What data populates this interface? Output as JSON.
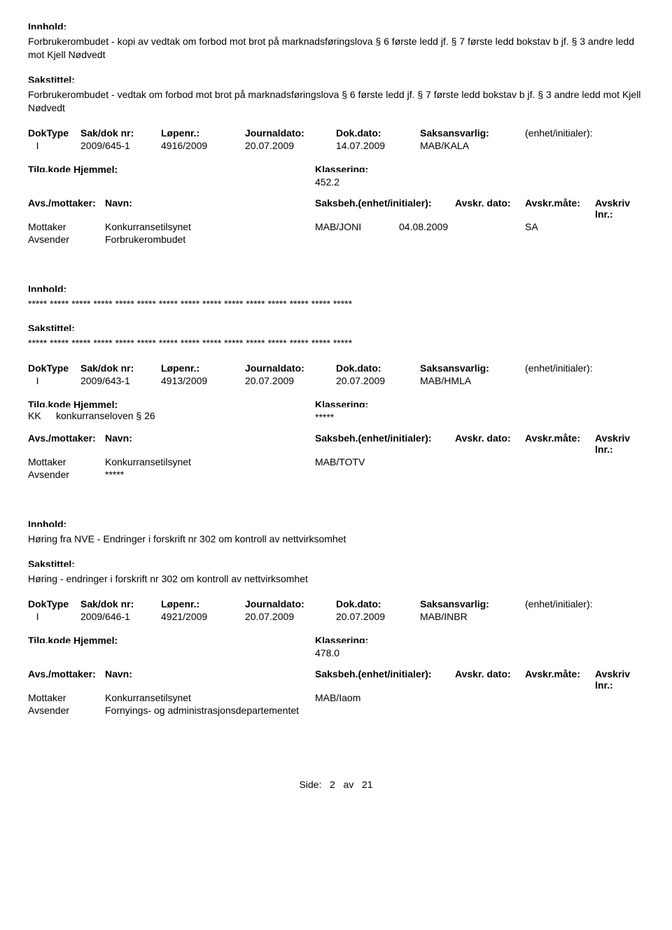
{
  "labels": {
    "innhold": "Innhold:",
    "sakstittel": "Sakstittel:",
    "dokType": "DokType",
    "sakDok": "Sak/dok nr:",
    "lopenr": "Løpenr.:",
    "journaldato": "Journaldato:",
    "dokdato": "Dok.dato:",
    "saksansvarlig": "Saksansvarlig:",
    "enhet": "(enhet/initialer):",
    "tilgkode": "Tilg.kode",
    "hjemmel": "Hjemmel:",
    "klassering": "Klassering:",
    "avsMottaker": "Avs./mottaker:",
    "navn": "Navn:",
    "saksbeh": "Saksbeh.(enhet/initialer):",
    "avskrDato": "Avskr. dato:",
    "avskrMate": "Avskr.måte:",
    "avskrivLnr": "Avskriv lnr.:"
  },
  "records": [
    {
      "innhold": "Forbrukerombudet - kopi av vedtak om forbod mot brot på marknadsføringslova § 6 første ledd jf. § 7 første ledd bokstav b jf. § 3 andre ledd mot Kjell Nødvedt",
      "sakstittel": "Forbrukerombudet - vedtak om forbod mot brot på marknadsføringslova § 6 første ledd jf. § 7 første ledd bokstav b jf. § 3 andre ledd mot Kjell Nødvedt",
      "dokType": "I",
      "sakDok": "2009/645-1",
      "lopenr": "4916/2009",
      "journaldato": "20.07.2009",
      "dokdato": "14.07.2009",
      "saksansvarlig": "MAB/KALA",
      "enhet": "",
      "tilgkode": "",
      "hjemmel": "",
      "klassering": "452.2",
      "parties": [
        {
          "role": "Mottaker",
          "name": "Konkurransetilsynet",
          "saksbeh": "MAB/JONI",
          "avskrDato": "04.08.2009",
          "avskrMate": "SA"
        },
        {
          "role": "Avsender",
          "name": "Forbrukerombudet",
          "saksbeh": "",
          "avskrDato": "",
          "avskrMate": ""
        }
      ]
    },
    {
      "innhold": "***** ***** ***** ***** ***** ***** ***** ***** ***** ***** ***** ***** ***** ***** *****",
      "sakstittel": "***** ***** ***** ***** ***** ***** ***** ***** ***** ***** ***** ***** ***** ***** *****",
      "dokType": "I",
      "sakDok": "2009/643-1",
      "lopenr": "4913/2009",
      "journaldato": "20.07.2009",
      "dokdato": "20.07.2009",
      "saksansvarlig": "MAB/HMLA",
      "enhet": "",
      "tilgkode": "KK",
      "hjemmel": "konkurranseloven § 26",
      "klassering": "*****",
      "parties": [
        {
          "role": "Mottaker",
          "name": "Konkurransetilsynet",
          "saksbeh": "MAB/TOTV",
          "avskrDato": "",
          "avskrMate": ""
        },
        {
          "role": "Avsender",
          "name": "*****",
          "saksbeh": "",
          "avskrDato": "",
          "avskrMate": ""
        }
      ]
    },
    {
      "innhold": "Høring fra NVE - Endringer i forskrift nr 302 om kontroll av nettvirksomhet",
      "sakstittel": "Høring - endringer i forskrift nr 302 om kontroll av nettvirksomhet",
      "dokType": "I",
      "sakDok": "2009/646-1",
      "lopenr": "4921/2009",
      "journaldato": "20.07.2009",
      "dokdato": "20.07.2009",
      "saksansvarlig": "MAB/INBR",
      "enhet": "",
      "tilgkode": "",
      "hjemmel": "",
      "klassering": "478.0",
      "parties": [
        {
          "role": "Mottaker",
          "name": "Konkurransetilsynet",
          "saksbeh": "MAB/Iaom",
          "avskrDato": "",
          "avskrMate": ""
        },
        {
          "role": "Avsender",
          "name": "Fornyings- og administrasjonsdepartementet",
          "saksbeh": "",
          "avskrDato": "",
          "avskrMate": ""
        }
      ]
    }
  ],
  "footer": {
    "side": "Side:",
    "page": "2",
    "av": "av",
    "total": "21"
  }
}
